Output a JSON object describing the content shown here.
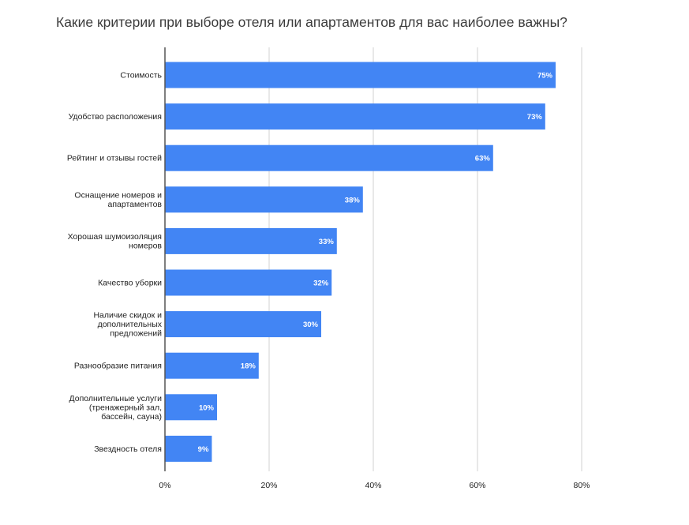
{
  "chart_data": {
    "type": "bar",
    "orientation": "horizontal",
    "title": "Какие критерии при выборе отеля или апартаментов для вас наиболее важны?",
    "categories": [
      "Стоимость",
      "Удобство расположения",
      "Рейтинг и отзывы гостей",
      "Оснащение номеров и апартаментов",
      "Хорошая шумоизоляция номеров",
      "Качество уборки",
      "Наличие скидок и дополнительных предложений",
      "Разнообразие питания",
      "Дополнительные услуги (тренажерный зал, бассейн, сауна)",
      "Звездность отеля"
    ],
    "category_lines": [
      [
        "Стоимость"
      ],
      [
        "Удобство расположения"
      ],
      [
        "Рейтинг и отзывы гостей"
      ],
      [
        "Оснащение номеров и",
        "апартаментов"
      ],
      [
        "Хорошая шумоизоляция",
        "номеров"
      ],
      [
        "Качество уборки"
      ],
      [
        "Наличие скидок и",
        "дополнительных",
        "предложений"
      ],
      [
        "Разнообразие питания"
      ],
      [
        "Дополнительные услуги",
        "(тренажерный зал,",
        "бассейн, сауна)"
      ],
      [
        "Звездность отеля"
      ]
    ],
    "values": [
      75,
      73,
      63,
      38,
      33,
      32,
      30,
      18,
      10,
      9
    ],
    "data_labels": [
      "75%",
      "73%",
      "63%",
      "38%",
      "33%",
      "32%",
      "30%",
      "18%",
      "10%",
      "9%"
    ],
    "xlim": [
      0,
      80
    ],
    "xticks": [
      0,
      20,
      40,
      60,
      80
    ],
    "xtick_labels": [
      "0%",
      "20%",
      "40%",
      "60%",
      "80%"
    ],
    "grid": "vertical",
    "legend": "none",
    "bar_color": "#4285f4",
    "grid_color": "#d0d0d0",
    "axis_color": "#555555"
  }
}
